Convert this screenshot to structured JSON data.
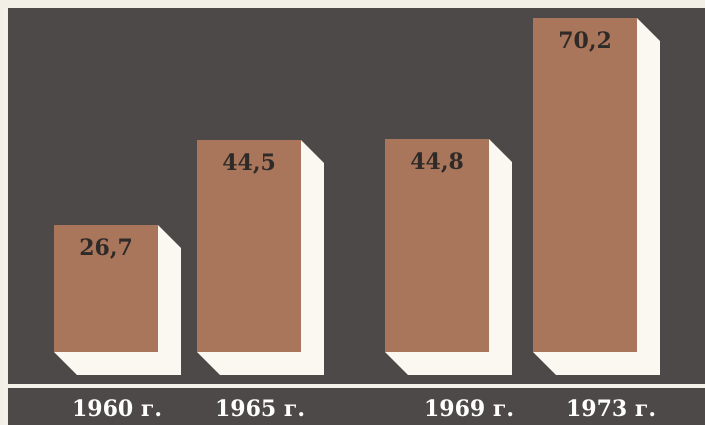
{
  "chart_data": {
    "type": "bar",
    "categories": [
      "1960 г.",
      "1965 г.",
      "1969 г.",
      "1973 г."
    ],
    "values": [
      26.7,
      44.5,
      44.8,
      70.2
    ],
    "data_labels": [
      "26,7",
      "44,5",
      "44,8",
      "70,2"
    ],
    "title": "",
    "xlabel": "",
    "ylabel": "",
    "ylim": [
      0,
      70.2
    ],
    "grid": false,
    "legend": "none"
  },
  "colors": {
    "background": "#4d4948",
    "bar_face": "#a9765c",
    "bar_side": "#fbf8f2",
    "axis_band": "#4d4948",
    "frame_line": "#f4f1ea"
  }
}
